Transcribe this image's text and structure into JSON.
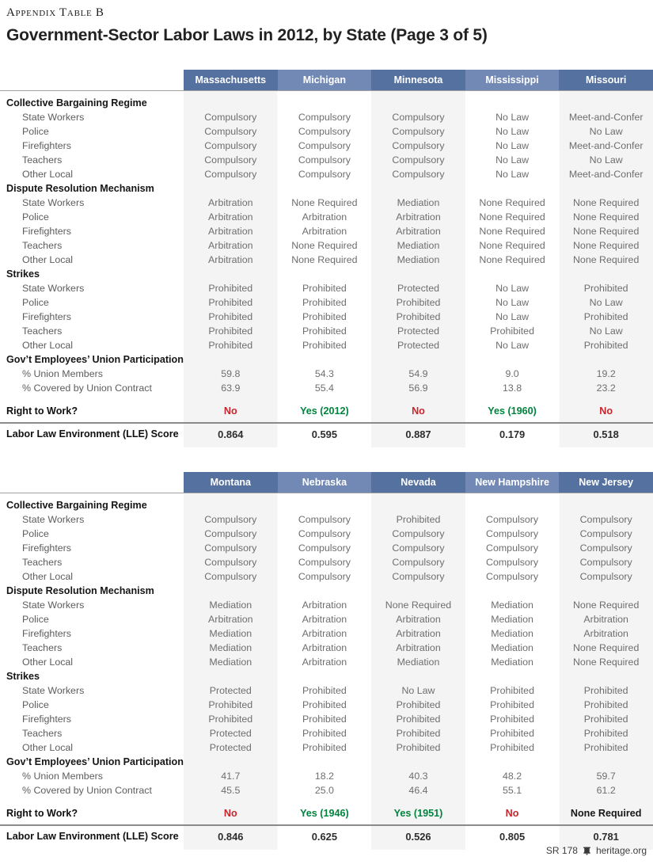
{
  "page": {
    "kicker": "Appendix Table B",
    "title": "Government-Sector Labor Laws in 2012, by State (Page 3 of 5)",
    "footer": {
      "report_number": "SR 178",
      "site": "heritage.org"
    }
  },
  "colors": {
    "header_blue_dark": "#5571a0",
    "header_blue_light": "#7389b5",
    "column_stripe": "#f4f4f4",
    "rtw_no": "#c9252c",
    "rtw_yes": "#00843d"
  },
  "row_labels": {
    "sections": [
      {
        "title": "Collective Bargaining Regime",
        "rows": [
          "State Workers",
          "Police",
          "Firefighters",
          "Teachers",
          "Other Local"
        ]
      },
      {
        "title": "Dispute Resolution Mechanism",
        "rows": [
          "State Workers",
          "Police",
          "Firefighters",
          "Teachers",
          "Other Local"
        ]
      },
      {
        "title": "Strikes",
        "rows": [
          "State Workers",
          "Police",
          "Firefighters",
          "Teachers",
          "Other Local"
        ]
      },
      {
        "title": "Gov’t Employees’ Union Participation",
        "rows": [
          "% Union Members",
          "% Covered by Union Contract"
        ]
      }
    ],
    "right_to_work": "Right to Work?",
    "lle_score": "Labor Law Environment (LLE) Score"
  },
  "tables": [
    {
      "states": [
        "Massachusetts",
        "Michigan",
        "Minnesota",
        "Mississippi",
        "Missouri"
      ],
      "values": [
        [
          [
            "Compulsory",
            "Compulsory",
            "Compulsory",
            "No Law",
            "Meet-and-Confer"
          ],
          [
            "Compulsory",
            "Compulsory",
            "Compulsory",
            "No Law",
            "No Law"
          ],
          [
            "Compulsory",
            "Compulsory",
            "Compulsory",
            "No Law",
            "Meet-and-Confer"
          ],
          [
            "Compulsory",
            "Compulsory",
            "Compulsory",
            "No Law",
            "No Law"
          ],
          [
            "Compulsory",
            "Compulsory",
            "Compulsory",
            "No Law",
            "Meet-and-Confer"
          ]
        ],
        [
          [
            "Arbitration",
            "None Required",
            "Mediation",
            "None Required",
            "None Required"
          ],
          [
            "Arbitration",
            "Arbitration",
            "Arbitration",
            "None Required",
            "None Required"
          ],
          [
            "Arbitration",
            "Arbitration",
            "Arbitration",
            "None Required",
            "None Required"
          ],
          [
            "Arbitration",
            "None Required",
            "Mediation",
            "None Required",
            "None Required"
          ],
          [
            "Arbitration",
            "None Required",
            "Mediation",
            "None Required",
            "None Required"
          ]
        ],
        [
          [
            "Prohibited",
            "Prohibited",
            "Protected",
            "No Law",
            "Prohibited"
          ],
          [
            "Prohibited",
            "Prohibited",
            "Prohibited",
            "No Law",
            "No Law"
          ],
          [
            "Prohibited",
            "Prohibited",
            "Prohibited",
            "No Law",
            "Prohibited"
          ],
          [
            "Prohibited",
            "Prohibited",
            "Protected",
            "Prohibited",
            "No Law"
          ],
          [
            "Prohibited",
            "Prohibited",
            "Protected",
            "No Law",
            "Prohibited"
          ]
        ],
        [
          [
            "59.8",
            "54.3",
            "54.9",
            "9.0",
            "19.2"
          ],
          [
            "63.9",
            "55.4",
            "56.9",
            "13.8",
            "23.2"
          ]
        ]
      ],
      "right_to_work": [
        {
          "text": "No",
          "status": "no"
        },
        {
          "text": "Yes (2012)",
          "status": "yes"
        },
        {
          "text": "No",
          "status": "no"
        },
        {
          "text": "Yes (1960)",
          "status": "yes"
        },
        {
          "text": "No",
          "status": "no"
        }
      ],
      "lle_scores": [
        "0.864",
        "0.595",
        "0.887",
        "0.179",
        "0.518"
      ]
    },
    {
      "states": [
        "Montana",
        "Nebraska",
        "Nevada",
        "New Hampshire",
        "New Jersey"
      ],
      "values": [
        [
          [
            "Compulsory",
            "Compulsory",
            "Prohibited",
            "Compulsory",
            "Compulsory"
          ],
          [
            "Compulsory",
            "Compulsory",
            "Compulsory",
            "Compulsory",
            "Compulsory"
          ],
          [
            "Compulsory",
            "Compulsory",
            "Compulsory",
            "Compulsory",
            "Compulsory"
          ],
          [
            "Compulsory",
            "Compulsory",
            "Compulsory",
            "Compulsory",
            "Compulsory"
          ],
          [
            "Compulsory",
            "Compulsory",
            "Compulsory",
            "Compulsory",
            "Compulsory"
          ]
        ],
        [
          [
            "Mediation",
            "Arbitration",
            "None Required",
            "Mediation",
            "None Required"
          ],
          [
            "Arbitration",
            "Arbitration",
            "Arbitration",
            "Mediation",
            "Arbitration"
          ],
          [
            "Mediation",
            "Arbitration",
            "Arbitration",
            "Mediation",
            "Arbitration"
          ],
          [
            "Mediation",
            "Arbitration",
            "Arbitration",
            "Mediation",
            "None Required"
          ],
          [
            "Mediation",
            "Arbitration",
            "Mediation",
            "Mediation",
            "None Required"
          ]
        ],
        [
          [
            "Protected",
            "Prohibited",
            "No Law",
            "Prohibited",
            "Prohibited"
          ],
          [
            "Prohibited",
            "Prohibited",
            "Prohibited",
            "Prohibited",
            "Prohibited"
          ],
          [
            "Prohibited",
            "Prohibited",
            "Prohibited",
            "Prohibited",
            "Prohibited"
          ],
          [
            "Protected",
            "Prohibited",
            "Prohibited",
            "Prohibited",
            "Prohibited"
          ],
          [
            "Protected",
            "Prohibited",
            "Prohibited",
            "Prohibited",
            "Prohibited"
          ]
        ],
        [
          [
            "41.7",
            "18.2",
            "40.3",
            "48.2",
            "59.7"
          ],
          [
            "45.5",
            "25.0",
            "46.4",
            "55.1",
            "61.2"
          ]
        ]
      ],
      "right_to_work": [
        {
          "text": "No",
          "status": "no"
        },
        {
          "text": "Yes (1946)",
          "status": "yes"
        },
        {
          "text": "Yes (1951)",
          "status": "yes"
        },
        {
          "text": "No",
          "status": "no"
        },
        {
          "text": "None Required",
          "status": "neutral"
        }
      ],
      "lle_scores": [
        "0.846",
        "0.625",
        "0.526",
        "0.805",
        "0.781"
      ]
    }
  ]
}
